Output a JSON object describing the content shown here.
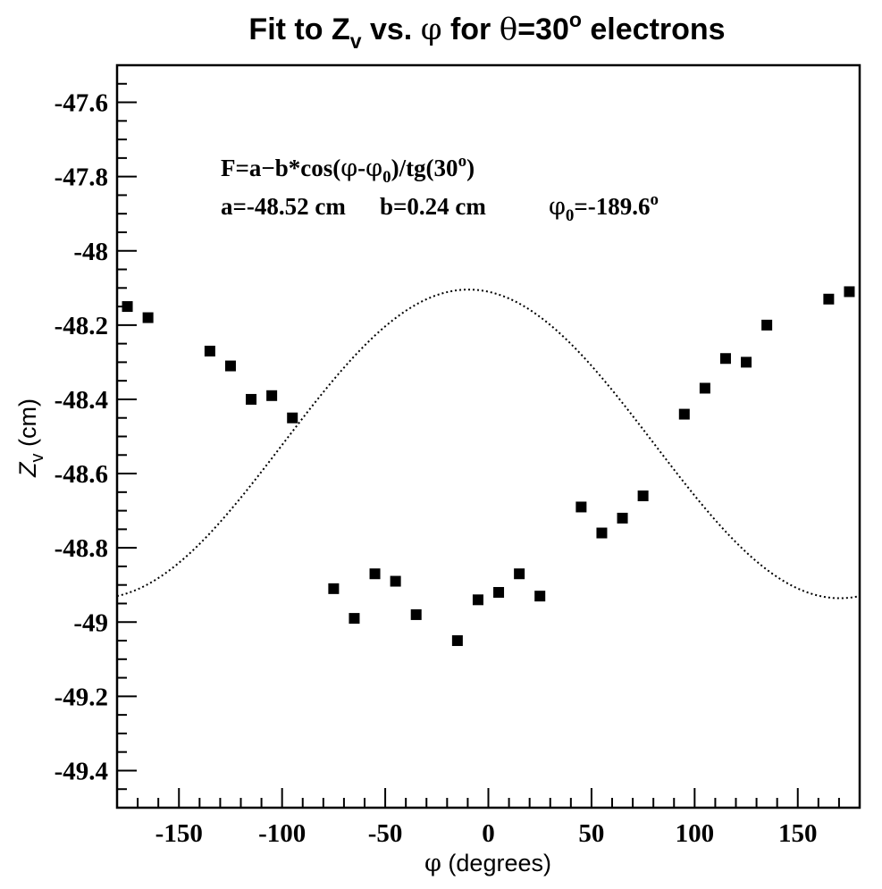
{
  "chart_data": {
    "type": "scatter",
    "title": {
      "prefix": "Fit to Z",
      "sub": "v",
      "mid": " vs. ",
      "phi": "φ",
      "for_text": " for ",
      "theta": "θ",
      "eq": "=30",
      "deg": "o",
      "suffix": " electrons"
    },
    "xlabel": {
      "sym": "φ",
      "text": " (degrees)"
    },
    "ylabel": {
      "sym": "Z",
      "sub": "v",
      "text": " (cm)"
    },
    "xlim": [
      -180,
      180
    ],
    "ylim": [
      -49.5,
      -47.5
    ],
    "x_ticks": [
      -150,
      -100,
      -50,
      0,
      50,
      100,
      150
    ],
    "y_ticks": [
      -47.6,
      -47.8,
      -48,
      -48.2,
      -48.4,
      -48.6,
      -48.8,
      -49,
      -49.2,
      -49.4
    ],
    "x_tick_labels": [
      "-150",
      "-100",
      "-50",
      "0",
      "50",
      "100",
      "150"
    ],
    "y_tick_labels": [
      "-47.6",
      "-47.8",
      "-48",
      "-48.2",
      "-48.4",
      "-48.6",
      "-48.8",
      "-49",
      "-49.2",
      "-49.4"
    ],
    "grid": false,
    "series": [
      {
        "marker": "square",
        "color": "#000000",
        "x": [
          -175,
          -165,
          -135,
          -125,
          -115,
          -105,
          -95,
          -75,
          -65,
          -55,
          -45,
          -35,
          -15,
          -5,
          5,
          15,
          25,
          45,
          55,
          65,
          75,
          95,
          105,
          115,
          125,
          135,
          165,
          175
        ],
        "y": [
          -48.15,
          -48.18,
          -48.27,
          -48.31,
          -48.4,
          -48.39,
          -48.45,
          -48.91,
          -48.99,
          -48.87,
          -48.89,
          -48.98,
          -49.05,
          -48.94,
          -48.92,
          -48.87,
          -48.93,
          -48.69,
          -48.76,
          -48.72,
          -48.66,
          -48.44,
          -48.37,
          -48.29,
          -48.3,
          -48.2,
          -48.13,
          -48.11
        ]
      },
      {
        "style": "dotted",
        "color": "#000000",
        "function": {
          "a": -48.52,
          "b": 0.24,
          "phi0": -189.6,
          "theta": 30
        }
      }
    ],
    "annotation": {
      "line1": {
        "pre": "F=a−b*cos(",
        "phi": "φ",
        "dash": "-",
        "phi2": "φ",
        "sub0": "0",
        "post": ")/tg(30",
        "deg": "o",
        "close": ")"
      },
      "line2": {
        "a": "a=-48.52 cm",
        "b": "b=0.24 cm",
        "phi": "φ",
        "sub0": "0",
        "val": "=-189.6",
        "deg": "o"
      }
    }
  }
}
